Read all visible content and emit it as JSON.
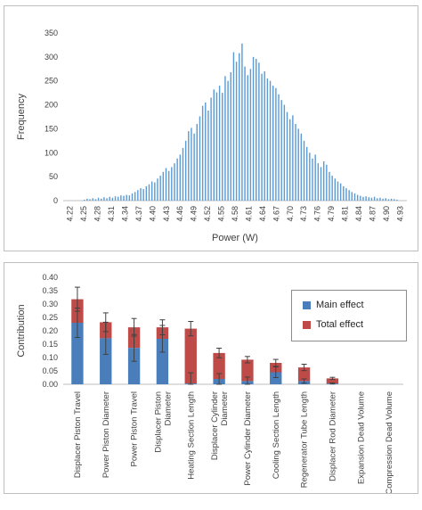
{
  "chart_data": [
    {
      "type": "bar",
      "xlabel": "Power (W)",
      "ylabel": "Frequency",
      "ylim": [
        0,
        350
      ],
      "yticks": [
        "0",
        "50",
        "100",
        "150",
        "200",
        "250",
        "300",
        "350"
      ],
      "xtick_labels": [
        "4.22",
        "4.25",
        "4.28",
        "4.31",
        "4.34",
        "4.37",
        "4.40",
        "4.43",
        "4.46",
        "4.49",
        "4.52",
        "4.55",
        "4.58",
        "4.61",
        "4.64",
        "4.67",
        "4.70",
        "4.73",
        "4.76",
        "4.79",
        "4.81",
        "4.84",
        "4.87",
        "4.90",
        "4.93"
      ],
      "grid": false,
      "color": "#5b9bd5",
      "x_start": 4.22,
      "x_step": 0.006,
      "values": [
        0,
        0,
        0,
        0,
        0,
        0,
        0,
        2,
        4,
        3,
        5,
        3,
        6,
        4,
        7,
        5,
        8,
        6,
        9,
        8,
        11,
        10,
        12,
        11,
        15,
        18,
        22,
        26,
        24,
        30,
        34,
        40,
        38,
        46,
        52,
        60,
        68,
        62,
        70,
        78,
        88,
        96,
        110,
        125,
        145,
        152,
        140,
        160,
        176,
        198,
        205,
        188,
        215,
        232,
        226,
        240,
        225,
        260,
        250,
        268,
        310,
        290,
        308,
        328,
        280,
        262,
        275,
        300,
        296,
        288,
        265,
        270,
        255,
        250,
        240,
        235,
        222,
        210,
        200,
        185,
        170,
        178,
        160,
        150,
        140,
        125,
        112,
        100,
        88,
        96,
        78,
        70,
        82,
        75,
        60,
        52,
        46,
        40,
        36,
        30,
        26,
        22,
        18,
        15,
        12,
        10,
        8,
        9,
        7,
        6,
        8,
        5,
        6,
        4,
        5,
        3,
        4,
        3,
        2,
        0,
        0,
        0
      ]
    },
    {
      "type": "bar",
      "ylabel": "Contribution",
      "ylim": [
        0,
        0.4
      ],
      "yticks": [
        "0.00",
        "0.05",
        "0.10",
        "0.15",
        "0.20",
        "0.25",
        "0.30",
        "0.35",
        "0.40"
      ],
      "categories": [
        "Displacer Piston Travel",
        "Power Piston Diameter",
        "Power Piston Travel",
        "Displacer Piston Diameter",
        "Heating Section Length",
        "Displacer Cylinder Diameter",
        "Power Cylinder Diameter",
        "Cooling Section Length",
        "Regenerator Tube Length",
        "Displacer Rod Diameter",
        "Expansion Dead Volume",
        "Compression Dead Volume"
      ],
      "series": [
        {
          "name": "Main effect",
          "color": "#4a7ebb",
          "values": [
            0.23,
            0.172,
            0.136,
            0.17,
            0.003,
            0.02,
            0.012,
            0.045,
            0.012,
            0.003,
            0.0,
            0.0
          ],
          "error": [
            0.055,
            0.06,
            0.05,
            0.05,
            0.04,
            0.02,
            0.015,
            0.02,
            0.008,
            0.002,
            0,
            0
          ]
        },
        {
          "name": "Total effect",
          "color": "#be4b48",
          "values": [
            0.318,
            0.232,
            0.213,
            0.213,
            0.208,
            0.117,
            0.092,
            0.08,
            0.063,
            0.022,
            0.0,
            0.0
          ],
          "error": [
            0.045,
            0.035,
            0.033,
            0.028,
            0.027,
            0.018,
            0.012,
            0.013,
            0.012,
            0.004,
            0,
            0
          ]
        }
      ],
      "legend": "top-right",
      "grid": false
    }
  ]
}
